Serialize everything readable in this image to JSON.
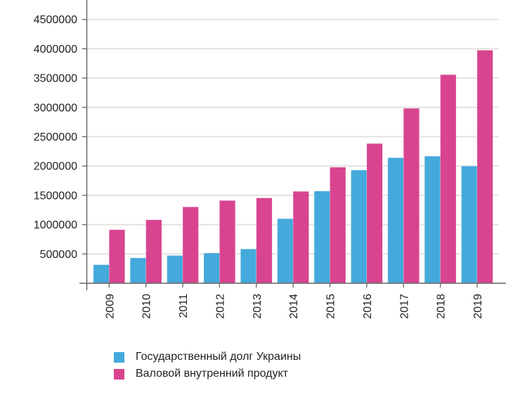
{
  "chart_data": {
    "type": "bar",
    "title": "",
    "xlabel": "",
    "ylabel": "",
    "categories": [
      "2009",
      "2010",
      "2011",
      "2012",
      "2013",
      "2014",
      "2015",
      "2016",
      "2017",
      "2018",
      "2019"
    ],
    "series": [
      {
        "name": "Государственный долг Украины",
        "color": "#44a9db",
        "values": [
          316000,
          432000,
          473000,
          515000,
          584000,
          1101000,
          1572000,
          1930000,
          2141000,
          2168000,
          1998000
        ]
      },
      {
        "name": "Валовой внутренний продукт",
        "color": "#d9448f",
        "values": [
          913000,
          1082000,
          1302000,
          1411000,
          1455000,
          1567000,
          1979000,
          2383000,
          2983000,
          3558000,
          3975000
        ]
      }
    ],
    "yticks": [
      500000,
      1000000,
      1500000,
      2000000,
      2500000,
      3000000,
      3500000,
      4000000,
      4500000
    ],
    "ylim": [
      0,
      4830000
    ],
    "grid": true,
    "legend_position": "bottom-left",
    "xtick_rotation": -90
  },
  "legend": {
    "items": [
      {
        "label": "Государственный долг Украины",
        "color": "#44a9db"
      },
      {
        "label": "Валовой внутренний продукт",
        "color": "#d9448f"
      }
    ]
  }
}
